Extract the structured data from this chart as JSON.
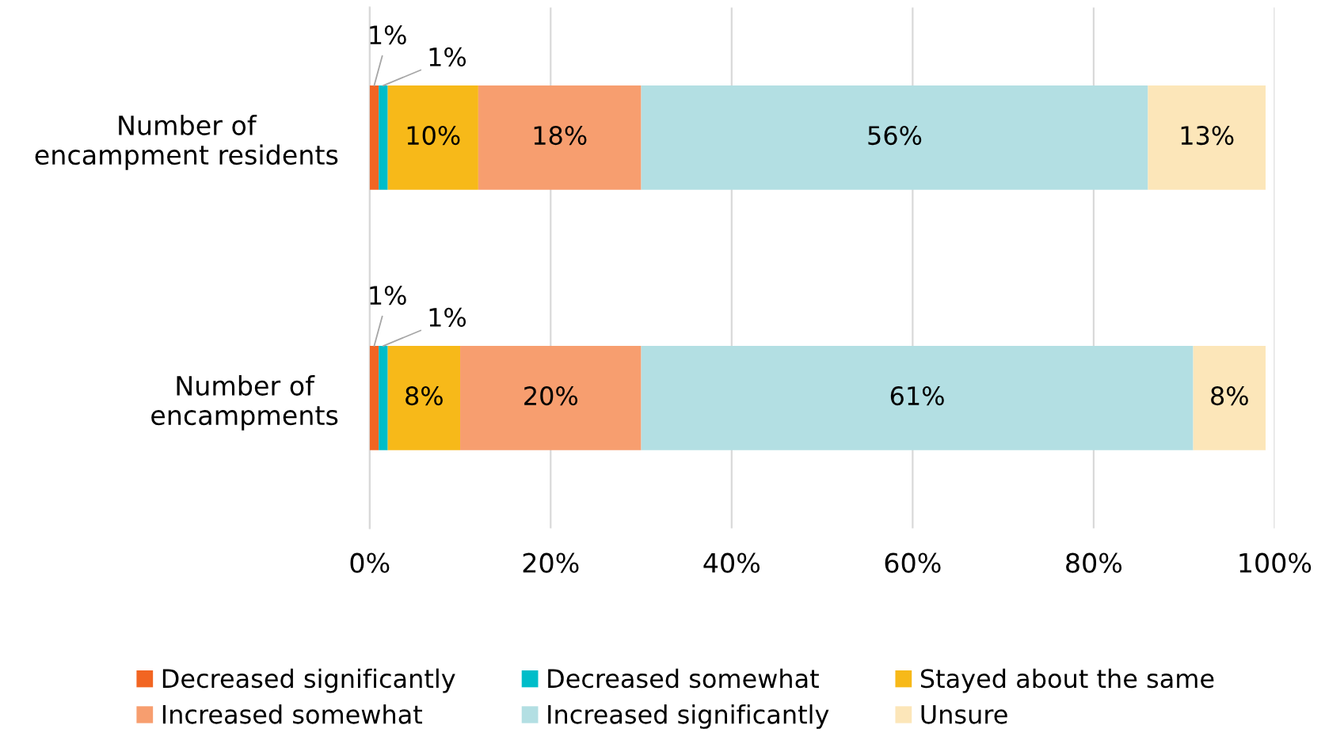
{
  "chart_data": {
    "type": "bar",
    "orientation": "horizontal",
    "stacked": true,
    "categories": [
      "Number of\nencampment residents",
      "Number of\nencampments"
    ],
    "series": [
      {
        "name": "Decreased significantly",
        "color": "#f26522",
        "values": [
          1,
          1
        ],
        "value_labels": [
          "1%",
          "1%"
        ]
      },
      {
        "name": "Decreased somewhat",
        "color": "#00bdc9",
        "values": [
          1,
          1
        ],
        "value_labels": [
          "1%",
          "1%"
        ]
      },
      {
        "name": "Stayed about the same",
        "color": "#f7b919",
        "values": [
          10,
          8
        ],
        "value_labels": [
          "10%",
          "8%"
        ]
      },
      {
        "name": "Increased somewhat",
        "color": "#f79e6f",
        "values": [
          18,
          20
        ],
        "value_labels": [
          "18%",
          "20%"
        ]
      },
      {
        "name": "Increased significantly",
        "color": "#b3dfe3",
        "values": [
          56,
          61
        ],
        "value_labels": [
          "56%",
          "61%"
        ]
      },
      {
        "name": "Unsure",
        "color": "#fce6b9",
        "values": [
          13,
          8
        ],
        "value_labels": [
          "13%",
          "8%"
        ]
      }
    ],
    "xlim": [
      0,
      100
    ],
    "xticks": [
      {
        "value": 0,
        "label": "0%"
      },
      {
        "value": 20,
        "label": "20%"
      },
      {
        "value": 40,
        "label": "40%"
      },
      {
        "value": 60,
        "label": "60%"
      },
      {
        "value": 80,
        "label": "80%"
      },
      {
        "value": 100,
        "label": "100%"
      }
    ],
    "grid": "x",
    "legend": "bottom"
  }
}
